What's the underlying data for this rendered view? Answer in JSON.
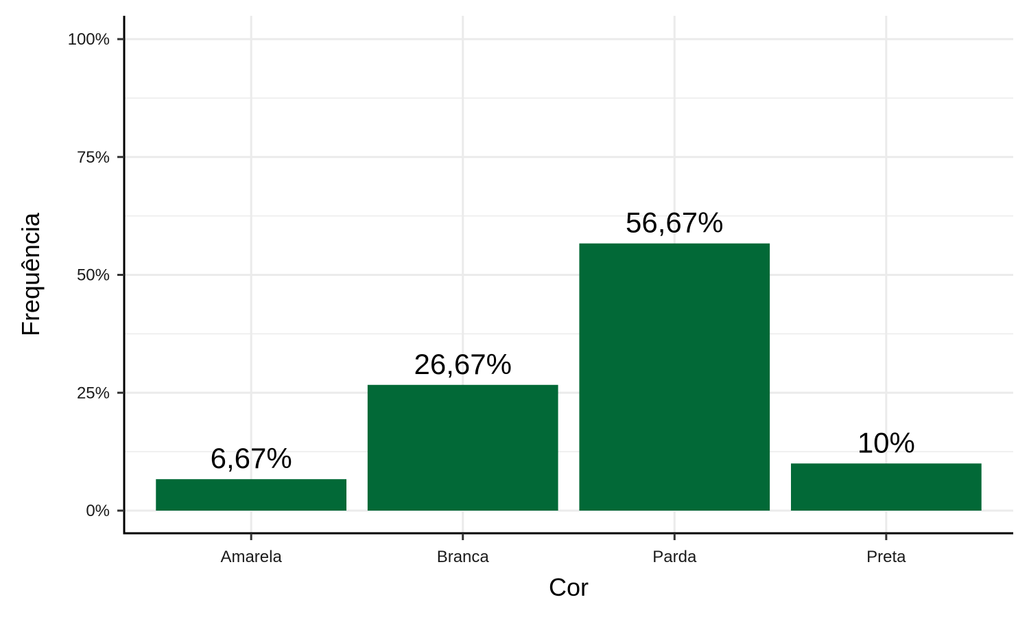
{
  "chart_data": {
    "type": "bar",
    "title": "",
    "xlabel": "Cor",
    "ylabel": "Frequência",
    "categories": [
      "Amarela",
      "Branca",
      "Parda",
      "Preta"
    ],
    "values": [
      6.67,
      26.67,
      56.67,
      10
    ],
    "data_labels": [
      "6,67%",
      "26,67%",
      "56,67%",
      "10%"
    ],
    "ylim": [
      0,
      100
    ],
    "yticks": [
      0,
      25,
      50,
      75,
      100
    ],
    "ytick_labels": [
      "0%",
      "25%",
      "50%",
      "75%",
      "100%"
    ],
    "grid": true,
    "legend": "none",
    "bar_color": "#026937",
    "grid_color": "#ebebeb"
  }
}
